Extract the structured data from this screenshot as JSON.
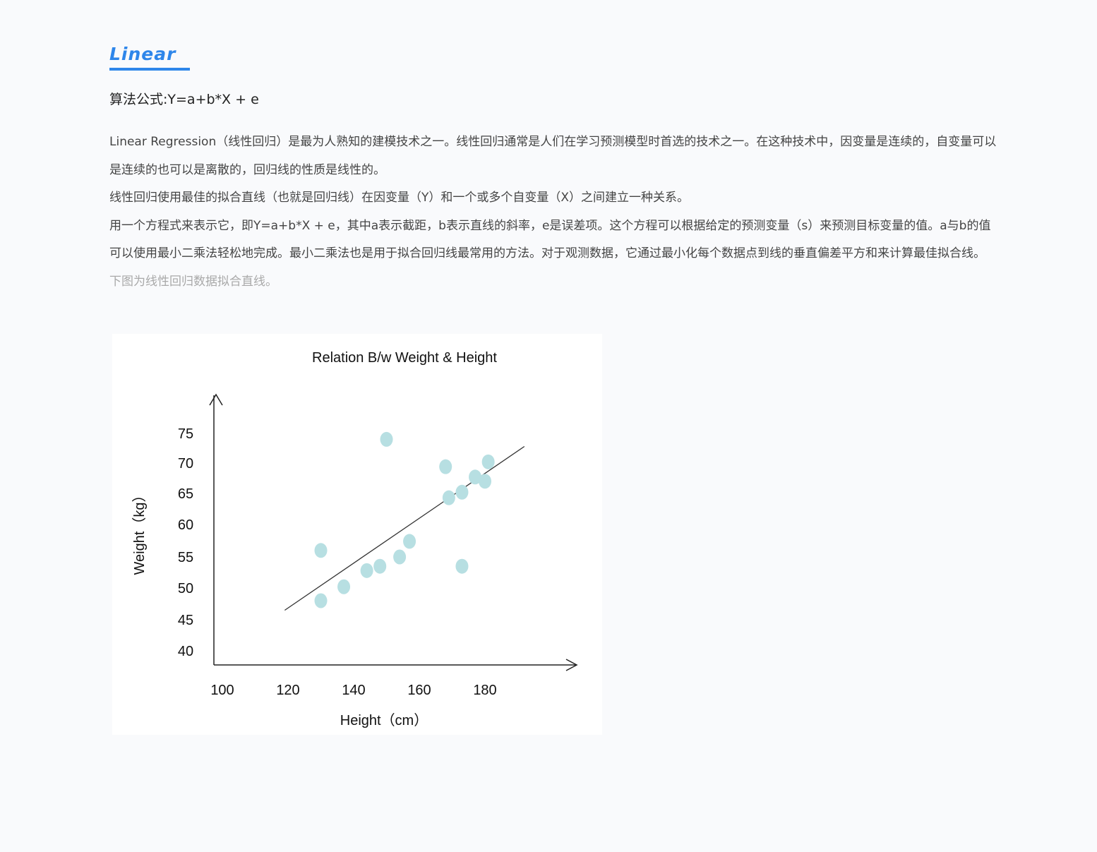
{
  "section": {
    "title": "Linear"
  },
  "formula": "算法公式:Y=a+b*X  +  e",
  "paragraphs": [
    "Linear Regression（线性回归）是最为人熟知的建模技术之一。线性回归通常是人们在学习预测模型时首选的技术之一。在这种技术中，因变量是连续的，自变量可以是连续的也可以是离散的，回归线的性质是线性的。",
    "线性回归使用最佳的拟合直线（也就是回归线）在因变量（Y）和一个或多个自变量（X）之间建立一种关系。",
    "用一个方程式来表示它，即Y=a+b*X  +  e，其中a表示截距，b表示直线的斜率，e是误差项。这个方程可以根据给定的预测变量（s）来预测目标变量的值。a与b的值可以使用最小二乘法轻松地完成。最小二乘法也是用于拟合回归线最常用的方法。对于观测数据，它通过最小化每个数据点到线的垂直偏差平方和来计算最佳拟合线。"
  ],
  "caption": "下图为线性回归数据拟合直线。",
  "colors": {
    "accent": "#2e86ea",
    "point": "#b7dfe2",
    "line": "#333333",
    "caption": "#a9a9a9"
  },
  "chart_data": {
    "type": "scatter",
    "title": "Relation B/w Weight & Height",
    "xlabel": "Height（cm）",
    "ylabel": "Weight（kg）",
    "x_ticks": [
      100,
      120,
      140,
      160,
      180
    ],
    "y_ticks": [
      40,
      45,
      50,
      55,
      60,
      65,
      70,
      75
    ],
    "grid": false,
    "legend": "none",
    "points": [
      {
        "x": 130,
        "y": 48
      },
      {
        "x": 130,
        "y": 56
      },
      {
        "x": 137,
        "y": 50.2
      },
      {
        "x": 144,
        "y": 52.8
      },
      {
        "x": 148,
        "y": 53.5
      },
      {
        "x": 150,
        "y": 74
      },
      {
        "x": 154,
        "y": 55
      },
      {
        "x": 157,
        "y": 57.4
      },
      {
        "x": 168,
        "y": 69.4
      },
      {
        "x": 169,
        "y": 64.3
      },
      {
        "x": 173,
        "y": 65.2
      },
      {
        "x": 173,
        "y": 53.5
      },
      {
        "x": 177,
        "y": 67.7
      },
      {
        "x": 180,
        "y": 67
      },
      {
        "x": 181,
        "y": 70.2
      }
    ],
    "regression_line": {
      "x": [
        119,
        192
      ],
      "y": [
        46.5,
        72.8
      ]
    }
  }
}
